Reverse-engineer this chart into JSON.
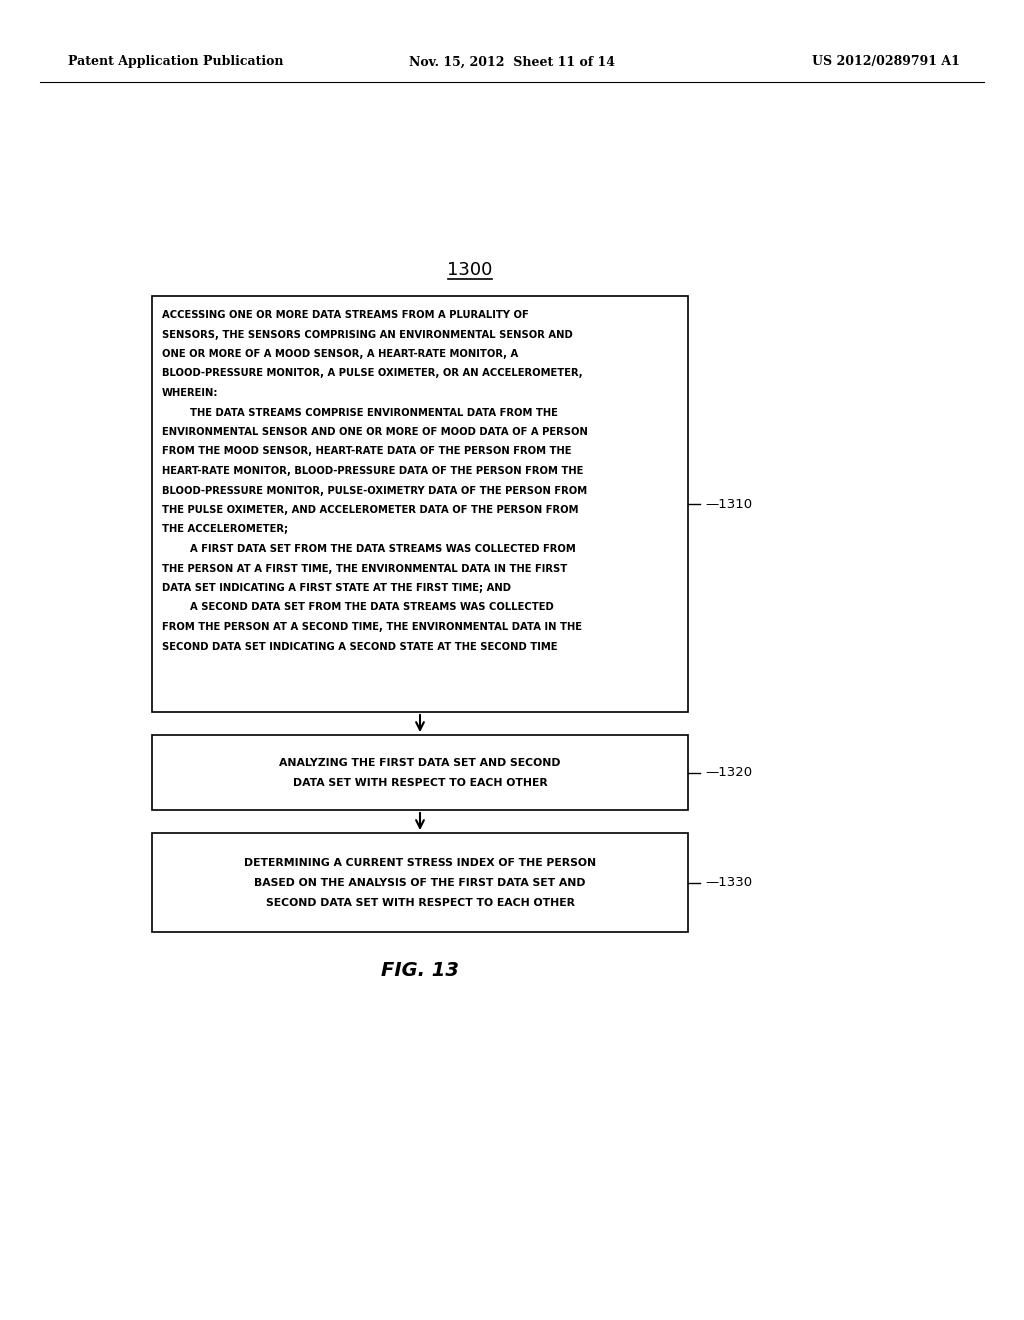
{
  "header_left": "Patent Application Publication",
  "header_center": "Nov. 15, 2012  Sheet 11 of 14",
  "header_right": "US 2012/0289791 A1",
  "fig_label": "FIG. 13",
  "diagram_label": "1300",
  "box1_label": "1310",
  "box2_label": "1320",
  "box3_label": "1330",
  "box1_lines": [
    "ACCESSING ONE OR MORE DATA STREAMS FROM A PLURALITY OF",
    "SENSORS, THE SENSORS COMPRISING AN ENVIRONMENTAL SENSOR AND",
    "ONE OR MORE OF A MOOD SENSOR, A HEART-RATE MONITOR, A",
    "BLOOD-PRESSURE MONITOR, A PULSE OXIMETER, OR AN ACCELEROMETER,",
    "WHEREIN:",
    "        THE DATA STREAMS COMPRISE ENVIRONMENTAL DATA FROM THE",
    "ENVIRONMENTAL SENSOR AND ONE OR MORE OF MOOD DATA OF A PERSON",
    "FROM THE MOOD SENSOR, HEART-RATE DATA OF THE PERSON FROM THE",
    "HEART-RATE MONITOR, BLOOD-PRESSURE DATA OF THE PERSON FROM THE",
    "BLOOD-PRESSURE MONITOR, PULSE-OXIMETRY DATA OF THE PERSON FROM",
    "THE PULSE OXIMETER, AND ACCELEROMETER DATA OF THE PERSON FROM",
    "THE ACCELEROMETER;",
    "        A FIRST DATA SET FROM THE DATA STREAMS WAS COLLECTED FROM",
    "THE PERSON AT A FIRST TIME, THE ENVIRONMENTAL DATA IN THE FIRST",
    "DATA SET INDICATING A FIRST STATE AT THE FIRST TIME; AND",
    "        A SECOND DATA SET FROM THE DATA STREAMS WAS COLLECTED",
    "FROM THE PERSON AT A SECOND TIME, THE ENVIRONMENTAL DATA IN THE",
    "SECOND DATA SET INDICATING A SECOND STATE AT THE SECOND TIME"
  ],
  "box2_lines": [
    "ANALYZING THE FIRST DATA SET AND SECOND",
    "DATA SET WITH RESPECT TO EACH OTHER"
  ],
  "box3_lines": [
    "DETERMINING A CURRENT STRESS INDEX OF THE PERSON",
    "BASED ON THE ANALYSIS OF THE FIRST DATA SET AND",
    "SECOND DATA SET WITH RESPECT TO EACH OTHER"
  ],
  "bg_color": "#ffffff",
  "text_color": "#000000",
  "box_edge_color": "#000000"
}
